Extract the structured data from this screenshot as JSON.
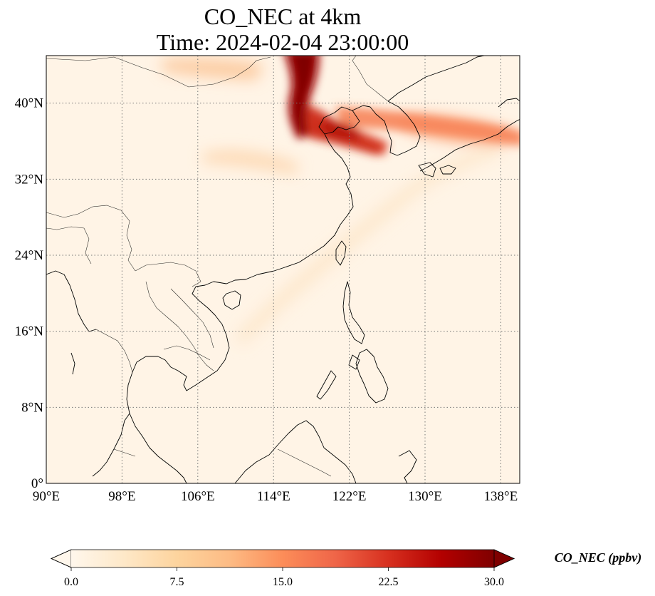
{
  "title": {
    "line1": "CO_NEC at 4km",
    "line2": "Time: 2024-02-04 23:00:00"
  },
  "map": {
    "lon_range": [
      90,
      140
    ],
    "lat_range": [
      0,
      45
    ],
    "gridlines": true,
    "gridline_style": "dotted",
    "lat_ticks": [
      {
        "value": 0,
        "label": "0°"
      },
      {
        "value": 8,
        "label": "8°N"
      },
      {
        "value": 16,
        "label": "16°N"
      },
      {
        "value": 24,
        "label": "24°N"
      },
      {
        "value": 32,
        "label": "32°N"
      },
      {
        "value": 40,
        "label": "40°N"
      }
    ],
    "lon_ticks": [
      {
        "value": 90,
        "label": "90°E"
      },
      {
        "value": 98,
        "label": "98°E"
      },
      {
        "value": 106,
        "label": "106°E"
      },
      {
        "value": 114,
        "label": "114°E"
      },
      {
        "value": 122,
        "label": "122°E"
      },
      {
        "value": 130,
        "label": "130°E"
      },
      {
        "value": 138,
        "label": "138°E"
      }
    ],
    "colormap": "OrRd",
    "plume_features": [
      {
        "name": "northern-plume",
        "lon": 117.5,
        "lat": 42.5,
        "value": 30
      },
      {
        "name": "north-china-plain-plume",
        "lon": 117,
        "lat": 37,
        "value": 26
      },
      {
        "name": "yellow-sea-plume",
        "lon": 121,
        "lat": 36,
        "value": 20
      },
      {
        "name": "korea-japan-plume",
        "lon": 130,
        "lat": 37.5,
        "value": 12
      },
      {
        "name": "mongolia-band",
        "lon": 104,
        "lat": 44.5,
        "value": 8
      },
      {
        "name": "central-china-band",
        "lon": 109,
        "lat": 35,
        "value": 5
      }
    ]
  },
  "colorbar": {
    "label": "CO_NEC (ppbv)",
    "min": 0,
    "max": 30,
    "extend": "both",
    "ticks": [
      {
        "value": 0,
        "label": "0.0"
      },
      {
        "value": 7.5,
        "label": "7.5"
      },
      {
        "value": 15,
        "label": "15.0"
      },
      {
        "value": 22.5,
        "label": "22.5"
      },
      {
        "value": 30,
        "label": "30.0"
      }
    ],
    "colors": [
      "#fff7ec",
      "#fee8c8",
      "#fdd49e",
      "#fdbb84",
      "#fc8d59",
      "#ef6548",
      "#d7301f",
      "#b30000",
      "#7f0000"
    ]
  }
}
